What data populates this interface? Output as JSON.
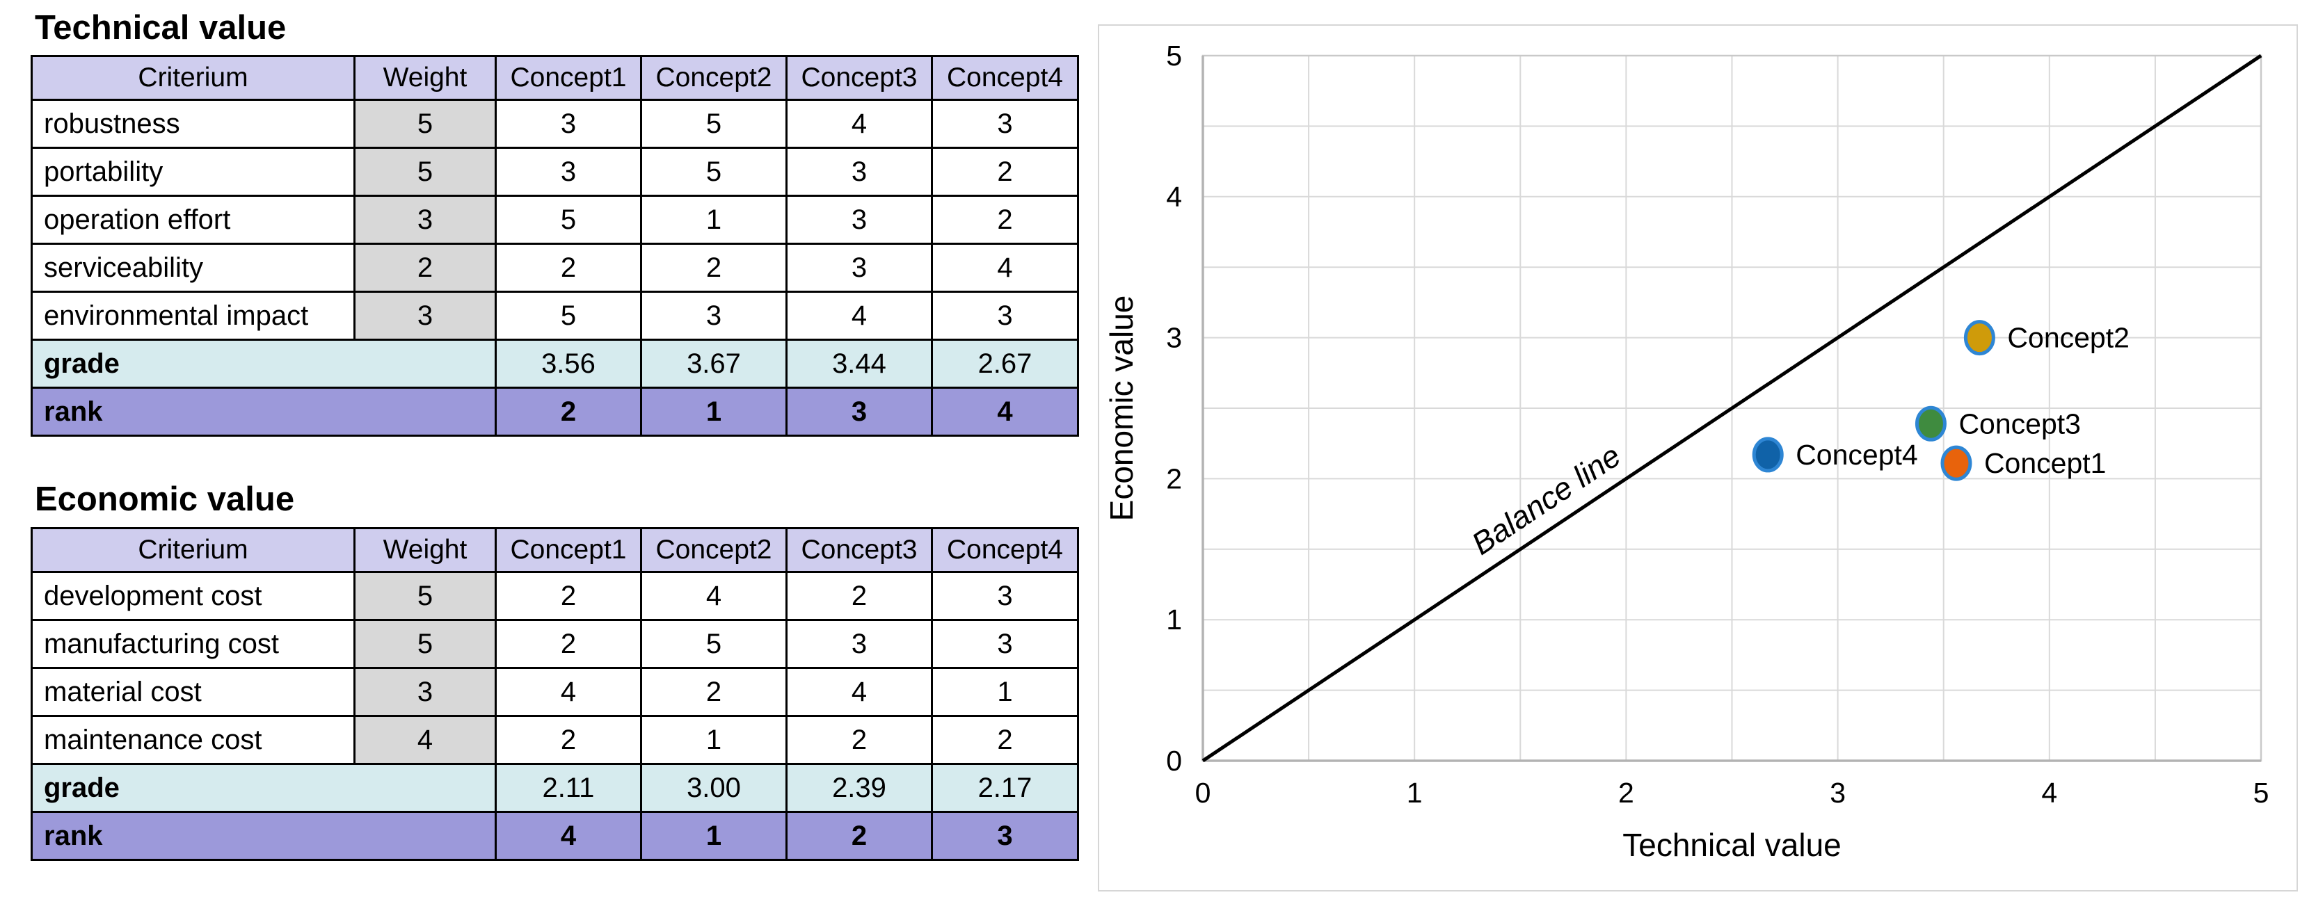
{
  "tables": [
    {
      "title": "Technical value",
      "headers": [
        "Criterium",
        "Weight",
        "Concept1",
        "Concept2",
        "Concept3",
        "Concept4"
      ],
      "rows": [
        {
          "criterium": "robustness",
          "weight": "5",
          "values": [
            "3",
            "5",
            "4",
            "3"
          ]
        },
        {
          "criterium": "portability",
          "weight": "5",
          "values": [
            "3",
            "5",
            "3",
            "2"
          ]
        },
        {
          "criterium": "operation effort",
          "weight": "3",
          "values": [
            "5",
            "1",
            "3",
            "2"
          ]
        },
        {
          "criterium": "serviceability",
          "weight": "2",
          "values": [
            "2",
            "2",
            "3",
            "4"
          ]
        },
        {
          "criterium": "environmental impact",
          "weight": "3",
          "values": [
            "5",
            "3",
            "4",
            "3"
          ]
        }
      ],
      "grade": {
        "label": "grade",
        "values": [
          "3.56",
          "3.67",
          "3.44",
          "2.67"
        ]
      },
      "rank": {
        "label": "rank",
        "values": [
          "2",
          "1",
          "3",
          "4"
        ]
      }
    },
    {
      "title": "Economic value",
      "headers": [
        "Criterium",
        "Weight",
        "Concept1",
        "Concept2",
        "Concept3",
        "Concept4"
      ],
      "rows": [
        {
          "criterium": "development cost",
          "weight": "5",
          "values": [
            "2",
            "4",
            "2",
            "3"
          ]
        },
        {
          "criterium": "manufacturing cost",
          "weight": "5",
          "values": [
            "2",
            "5",
            "3",
            "3"
          ]
        },
        {
          "criterium": "material cost",
          "weight": "3",
          "values": [
            "4",
            "2",
            "4",
            "1"
          ]
        },
        {
          "criterium": "maintenance cost",
          "weight": "4",
          "values": [
            "2",
            "1",
            "2",
            "2"
          ]
        }
      ],
      "grade": {
        "label": "grade",
        "values": [
          "2.11",
          "3.00",
          "2.39",
          "2.17"
        ]
      },
      "rank": {
        "label": "rank",
        "values": [
          "4",
          "1",
          "2",
          "3"
        ]
      }
    }
  ],
  "chart_data": {
    "type": "scatter",
    "xlabel": "Technical value",
    "ylabel": "Economic value",
    "xlim": [
      0,
      5
    ],
    "ylim": [
      0,
      5
    ],
    "xticks": [
      "0",
      "1",
      "2",
      "3",
      "4",
      "5"
    ],
    "yticks": [
      "0",
      "1",
      "2",
      "3",
      "4",
      "5"
    ],
    "grid": true,
    "grid_step": 0.5,
    "points": [
      {
        "name": "Concept1",
        "x": 3.56,
        "y": 2.11,
        "fill": "#e8630c",
        "stroke": "#2e86d4"
      },
      {
        "name": "Concept2",
        "x": 3.67,
        "y": 3.0,
        "fill": "#cf9b0a",
        "stroke": "#2e86d4"
      },
      {
        "name": "Concept3",
        "x": 3.44,
        "y": 2.39,
        "fill": "#3f8b3f",
        "stroke": "#2e86d4"
      },
      {
        "name": "Concept4",
        "x": 2.67,
        "y": 2.17,
        "fill": "#1062a8",
        "stroke": "#2e86d4"
      }
    ],
    "balance_line": {
      "label": "Balance line",
      "from": [
        0,
        0
      ],
      "to": [
        5,
        5
      ],
      "color": "#000000",
      "label_at_x": 1.65
    }
  },
  "colors": {
    "header_bg": "#cfcdee",
    "weight_bg": "#d8d8d8",
    "grade_bg": "#d6ebee",
    "rank_bg": "#9c99da",
    "table_border": "#000000",
    "grid": "#d9d9d9",
    "axis": "#b3b3b3",
    "plot_border": "#c9c9c9",
    "panel_border": "#d6d6d6"
  }
}
